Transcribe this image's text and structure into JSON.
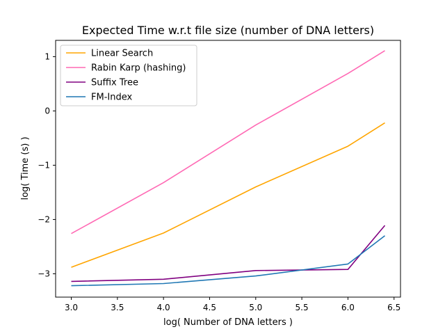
{
  "chart_data": {
    "type": "line",
    "title": "Expected Time w.r.t file size (number of DNA letters)",
    "xlabel": "log( Number of DNA letters )",
    "ylabel": "log( Time (s) )",
    "xlim": [
      2.83,
      6.57
    ],
    "ylim": [
      -3.43,
      1.3
    ],
    "xticks": [
      3.0,
      3.5,
      4.0,
      4.5,
      5.0,
      5.5,
      6.0,
      6.5
    ],
    "xtick_labels": [
      "3.0",
      "3.5",
      "4.0",
      "4.5",
      "5.0",
      "5.5",
      "6.0",
      "6.5"
    ],
    "yticks": [
      -3,
      -2,
      -1,
      0,
      1
    ],
    "ytick_labels": [
      "−3",
      "−2",
      "−1",
      "0",
      "1"
    ],
    "grid": false,
    "legend_position": "top-left",
    "x": [
      3.0,
      4.0,
      5.0,
      6.0,
      6.4
    ],
    "series": [
      {
        "name": "Linear Search",
        "color": "#ffa500",
        "values": [
          -2.88,
          -2.25,
          -1.4,
          -0.65,
          -0.22
        ]
      },
      {
        "name": "Rabin Karp (hashing)",
        "color": "#ff69b4",
        "values": [
          -2.26,
          -1.32,
          -0.26,
          0.69,
          1.11
        ]
      },
      {
        "name": "Suffix Tree",
        "color": "#800080",
        "values": [
          -3.14,
          -3.1,
          -2.94,
          -2.92,
          -2.11
        ]
      },
      {
        "name": "FM-Index",
        "color": "#1f77b4",
        "values": [
          -3.22,
          -3.18,
          -3.04,
          -2.82,
          -2.3
        ]
      }
    ]
  }
}
